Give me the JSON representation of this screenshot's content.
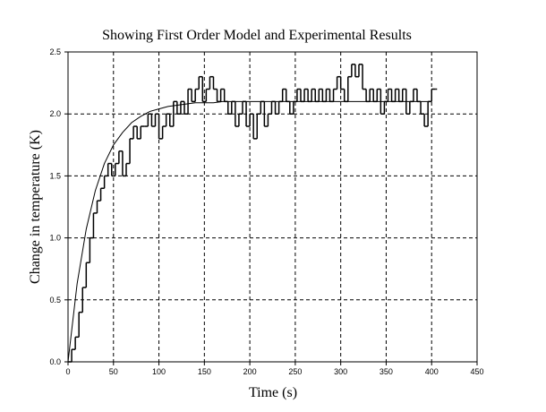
{
  "chart_data": {
    "type": "line",
    "title": "Showing First Order Model and Experimental Results",
    "x_label": "Time (s)",
    "y_label": "Change in temperature (K)",
    "xlim": [
      0,
      450
    ],
    "ylim": [
      0,
      2.5
    ],
    "xticks": [
      0,
      50,
      100,
      150,
      200,
      250,
      300,
      350,
      400,
      450
    ],
    "yticks": [
      {
        "value": 0,
        "label": "0.0"
      },
      0.5,
      {
        "value": 1,
        "label": "1.0"
      },
      1.5,
      {
        "value": 2,
        "label": "2.0"
      },
      2.5
    ],
    "grid": true,
    "series": [
      {
        "color": "#000000",
        "step": true,
        "x": [
          0,
          4,
          8,
          12,
          16,
          20,
          24,
          28,
          32,
          36,
          40,
          44,
          48,
          52,
          56,
          60,
          64,
          68,
          72,
          76,
          80,
          84,
          88,
          92,
          96,
          100,
          104,
          108,
          112,
          116,
          120,
          124,
          128,
          132,
          136,
          140,
          144,
          148,
          152,
          156,
          160,
          164,
          168,
          172,
          176,
          180,
          184,
          188,
          192,
          196,
          200,
          204,
          208,
          212,
          216,
          220,
          224,
          228,
          232,
          236,
          240,
          244,
          248,
          252,
          256,
          260,
          264,
          268,
          272,
          276,
          280,
          284,
          288,
          292,
          296,
          300,
          304,
          308,
          312,
          316,
          320,
          324,
          328,
          332,
          336,
          340,
          344,
          348,
          352,
          356,
          360,
          364,
          368,
          372,
          376,
          380,
          384,
          388,
          392,
          396,
          400,
          404
        ],
        "values": [
          0.0,
          0.1,
          0.2,
          0.4,
          0.6,
          0.8,
          1.0,
          1.2,
          1.3,
          1.4,
          1.5,
          1.6,
          1.5,
          1.6,
          1.7,
          1.5,
          1.6,
          1.8,
          1.9,
          1.8,
          1.9,
          1.9,
          2.0,
          1.9,
          2.0,
          1.8,
          1.9,
          2.0,
          1.9,
          2.1,
          2.0,
          2.1,
          2.0,
          2.2,
          2.1,
          2.2,
          2.3,
          2.1,
          2.2,
          2.3,
          2.2,
          2.1,
          2.2,
          2.1,
          2.0,
          2.1,
          1.9,
          2.0,
          2.1,
          1.9,
          2.0,
          1.8,
          2.0,
          2.1,
          1.9,
          2.0,
          2.1,
          2.0,
          2.1,
          2.2,
          2.1,
          2.0,
          2.1,
          2.2,
          2.1,
          2.2,
          2.1,
          2.2,
          2.1,
          2.2,
          2.1,
          2.2,
          2.1,
          2.2,
          2.3,
          2.2,
          2.1,
          2.3,
          2.4,
          2.3,
          2.4,
          2.2,
          2.1,
          2.2,
          2.1,
          2.2,
          2.0,
          2.1,
          2.2,
          2.1,
          2.2,
          2.1,
          2.2,
          2.0,
          2.1,
          2.2,
          2.1,
          2.0,
          1.9,
          2.1,
          2.2,
          2.2
        ]
      },
      {
        "color": "#000000",
        "step": false,
        "x": [
          0,
          10,
          20,
          30,
          40,
          50,
          60,
          70,
          80,
          90,
          100,
          110,
          120,
          130,
          140,
          150,
          160,
          170,
          180,
          190,
          200,
          210,
          220,
          230,
          240,
          250,
          260,
          270,
          280,
          290,
          300,
          310,
          320,
          330,
          340,
          350,
          360,
          370,
          380,
          390,
          400
        ],
        "values": [
          0,
          0.63,
          1.07,
          1.38,
          1.6,
          1.75,
          1.85,
          1.93,
          1.98,
          2.02,
          2.04,
          2.06,
          2.07,
          2.08,
          2.09,
          2.09,
          2.09,
          2.1,
          2.1,
          2.1,
          2.1,
          2.1,
          2.1,
          2.1,
          2.1,
          2.1,
          2.1,
          2.1,
          2.1,
          2.1,
          2.1,
          2.1,
          2.1,
          2.1,
          2.1,
          2.1,
          2.1,
          2.1,
          2.1,
          2.1,
          2.1
        ]
      }
    ]
  }
}
